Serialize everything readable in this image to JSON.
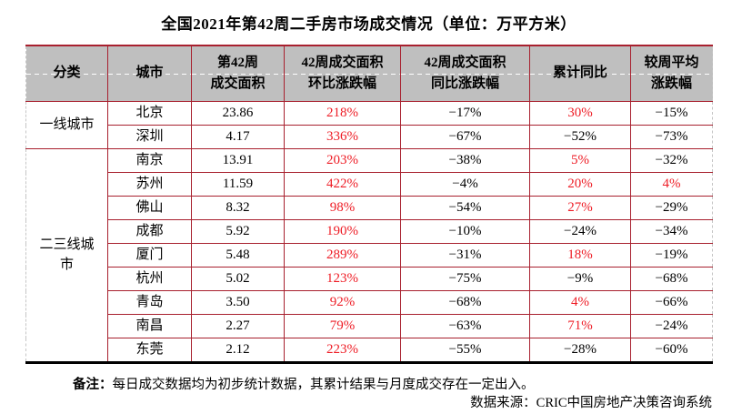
{
  "title": "全国2021年第42周二手房市场成交情况（单位：万平方米）",
  "table": {
    "columns": [
      {
        "line1": "分类",
        "line2": ""
      },
      {
        "line1": "城市",
        "line2": ""
      },
      {
        "line1": "第42周",
        "line2": "成交面积"
      },
      {
        "line1": "42周成交面积",
        "line2": "环比涨跌幅"
      },
      {
        "line1": "42周成交面积",
        "line2": "同比涨跌幅"
      },
      {
        "line1": "累计同比",
        "line2": ""
      },
      {
        "line1": "较周平均",
        "line2": "涨跌幅"
      }
    ]
  },
  "chart_data": {
    "type": "table",
    "title": "全国2021年第42周二手房市场成交情况（单位：万平方米）",
    "columns": [
      "分类",
      "城市",
      "第42周成交面积",
      "42周成交面积环比涨跌幅",
      "42周成交面积同比涨跌幅",
      "累计同比",
      "较周平均涨跌幅"
    ],
    "rows": [
      [
        "一线城市",
        "北京",
        "23.86",
        "218%",
        "-17%",
        "30%",
        "-15%"
      ],
      [
        "一线城市",
        "深圳",
        "4.17",
        "336%",
        "-67%",
        "-52%",
        "-73%"
      ],
      [
        "二三线城市",
        "南京",
        "13.91",
        "203%",
        "-38%",
        "5%",
        "-32%"
      ],
      [
        "二三线城市",
        "苏州",
        "11.59",
        "422%",
        "-4%",
        "20%",
        "4%"
      ],
      [
        "二三线城市",
        "佛山",
        "8.32",
        "98%",
        "-54%",
        "27%",
        "-29%"
      ],
      [
        "二三线城市",
        "成都",
        "5.92",
        "190%",
        "-10%",
        "-24%",
        "-34%"
      ],
      [
        "二三线城市",
        "厦门",
        "5.48",
        "289%",
        "-31%",
        "18%",
        "-19%"
      ],
      [
        "二三线城市",
        "杭州",
        "5.02",
        "123%",
        "-75%",
        "-9%",
        "-68%"
      ],
      [
        "二三线城市",
        "青岛",
        "3.50",
        "92%",
        "-68%",
        "4%",
        "-66%"
      ],
      [
        "二三线城市",
        "南昌",
        "2.27",
        "79%",
        "-63%",
        "71%",
        "-24%"
      ],
      [
        "二三线城市",
        "东莞",
        "2.12",
        "223%",
        "-55%",
        "-28%",
        "-60%"
      ]
    ],
    "value_color_rule": "positive percentages shown in red, negatives in black"
  },
  "footer": {
    "note_label": "备注：",
    "note_text": "每日成交数据均为初步统计数据，其累计结果与月度成交存在一定出入。",
    "source": "数据来源：CRIC中国房地产决策咨询系统"
  },
  "colors": {
    "border_red": "#A8202E",
    "text_red": "#EE1C25",
    "header_bg": "#BFBFBF"
  }
}
